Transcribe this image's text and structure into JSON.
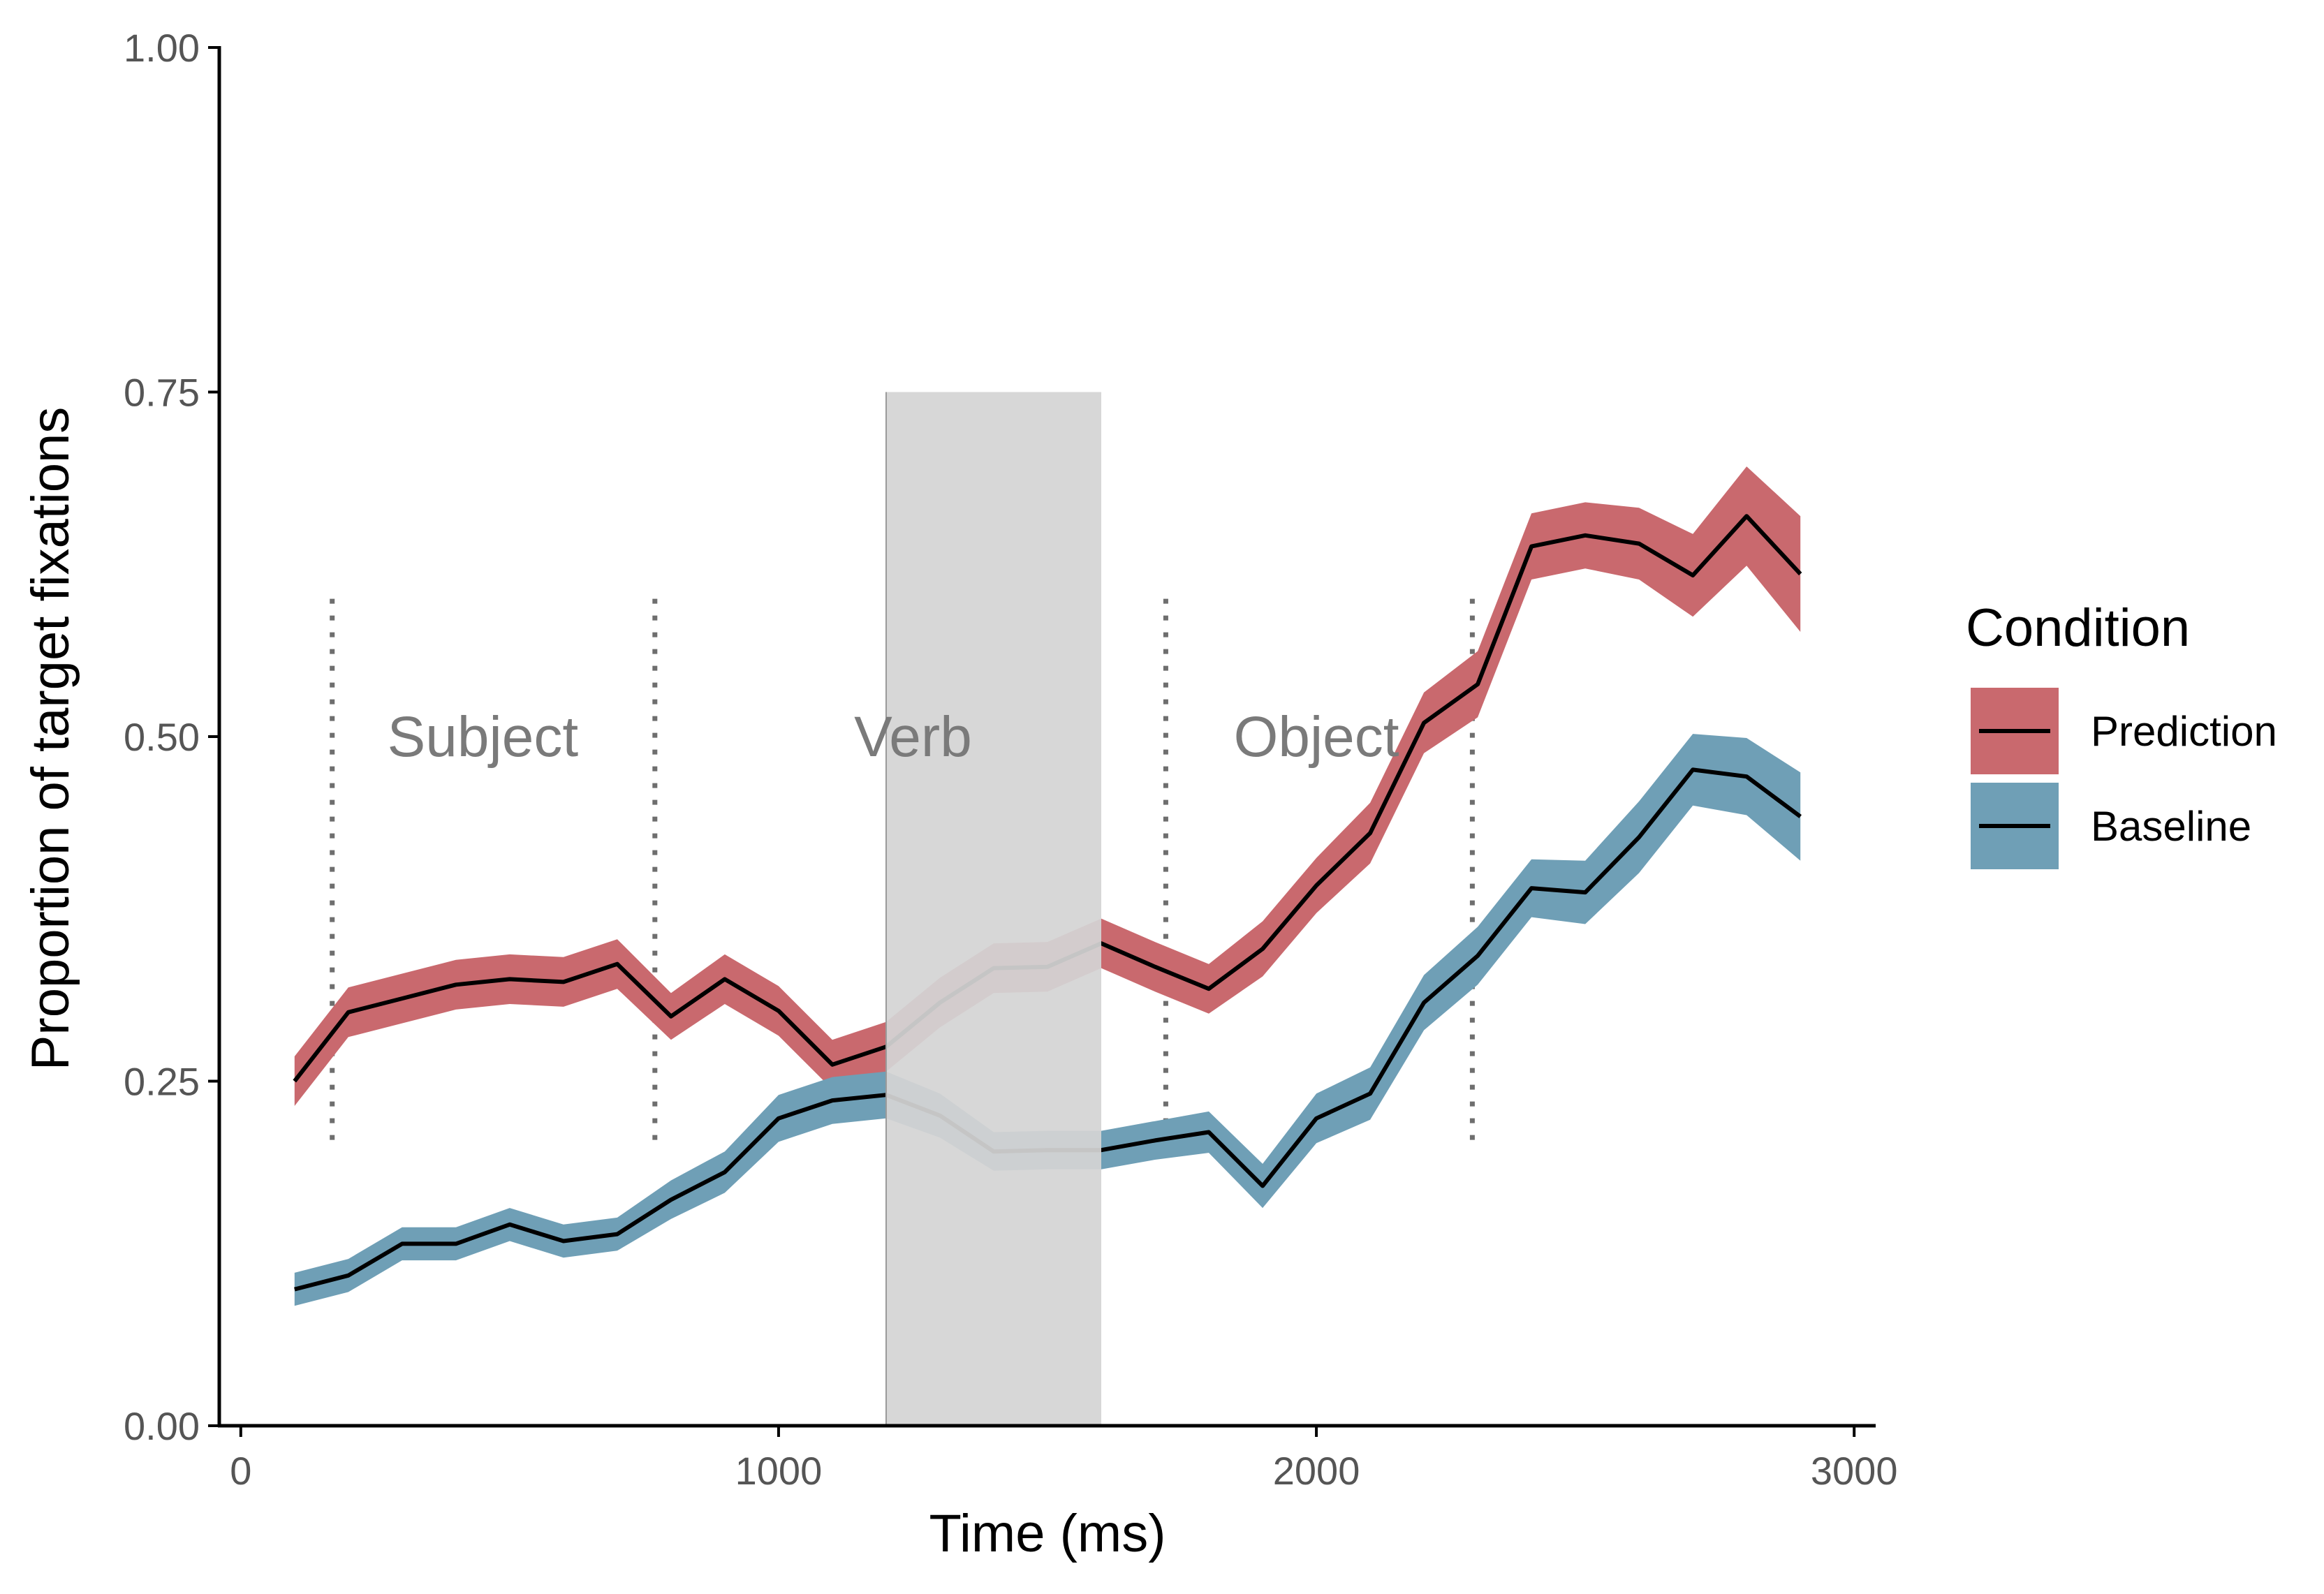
{
  "chart_data": {
    "type": "line",
    "xlabel": "Time (ms)",
    "ylabel": "Proportion of target fixations",
    "xlim": [
      -40,
      3040
    ],
    "ylim": [
      0,
      1
    ],
    "x_ticks": [
      0,
      1000,
      2000,
      3000
    ],
    "x_tick_labels": [
      "0",
      "1000",
      "2000",
      "3000"
    ],
    "y_ticks": [
      0,
      0.25,
      0.5,
      0.75,
      1
    ],
    "y_tick_labels": [
      "0.00",
      "0.25",
      "0.50",
      "0.75",
      "1.00"
    ],
    "grid": false,
    "x": [
      100,
      200,
      300,
      400,
      500,
      600,
      700,
      800,
      900,
      1000,
      1100,
      1200,
      1300,
      1400,
      1500,
      1600,
      1700,
      1800,
      1900,
      2000,
      2100,
      2200,
      2300,
      2400,
      2500,
      2600,
      2700,
      2800,
      2900
    ],
    "series": [
      {
        "name": "Prediction",
        "color": "#c9696e",
        "values": [
          0.25,
          0.3,
          0.31,
          0.32,
          0.324,
          0.322,
          0.335,
          0.297,
          0.324,
          0.301,
          0.262,
          0.275,
          0.307,
          0.332,
          0.333,
          0.35,
          0.333,
          0.317,
          0.346,
          0.392,
          0.43,
          0.51,
          0.538,
          0.638,
          0.646,
          0.64,
          0.617,
          0.66,
          0.618
        ],
        "lower": [
          0.232,
          0.282,
          0.292,
          0.302,
          0.306,
          0.304,
          0.317,
          0.28,
          0.306,
          0.283,
          0.244,
          0.257,
          0.289,
          0.314,
          0.315,
          0.332,
          0.315,
          0.299,
          0.326,
          0.372,
          0.408,
          0.488,
          0.514,
          0.614,
          0.622,
          0.614,
          0.587,
          0.624,
          0.576
        ],
        "upper": [
          0.268,
          0.318,
          0.328,
          0.338,
          0.342,
          0.34,
          0.353,
          0.314,
          0.342,
          0.319,
          0.28,
          0.293,
          0.325,
          0.35,
          0.351,
          0.368,
          0.351,
          0.335,
          0.366,
          0.412,
          0.452,
          0.532,
          0.562,
          0.662,
          0.67,
          0.666,
          0.647,
          0.696,
          0.66
        ]
      },
      {
        "name": "Baseline",
        "color": "#6f9fb6",
        "values": [
          0.099,
          0.109,
          0.132,
          0.132,
          0.146,
          0.134,
          0.139,
          0.164,
          0.184,
          0.223,
          0.236,
          0.24,
          0.225,
          0.199,
          0.2,
          0.2,
          0.207,
          0.213,
          0.174,
          0.223,
          0.241,
          0.307,
          0.341,
          0.39,
          0.387,
          0.427,
          0.476,
          0.471,
          0.442
        ],
        "lower": [
          0.087,
          0.097,
          0.12,
          0.12,
          0.134,
          0.122,
          0.127,
          0.15,
          0.169,
          0.206,
          0.219,
          0.223,
          0.209,
          0.185,
          0.186,
          0.186,
          0.193,
          0.198,
          0.158,
          0.205,
          0.222,
          0.287,
          0.32,
          0.369,
          0.364,
          0.401,
          0.45,
          0.443,
          0.41
        ],
        "upper": [
          0.111,
          0.121,
          0.144,
          0.144,
          0.158,
          0.146,
          0.151,
          0.178,
          0.199,
          0.24,
          0.253,
          0.257,
          0.241,
          0.213,
          0.214,
          0.214,
          0.221,
          0.228,
          0.19,
          0.241,
          0.26,
          0.327,
          0.362,
          0.411,
          0.41,
          0.453,
          0.502,
          0.499,
          0.474
        ]
      }
    ],
    "shaded_region": {
      "x_start": 1200,
      "x_end": 1600,
      "y_top": 0.75,
      "color": "#d4d4d4"
    },
    "vlines": [
      {
        "x": 170,
        "y_from": 0.2,
        "y_to": 0.6
      },
      {
        "x": 770,
        "y_from": 0.2,
        "y_to": 0.6
      },
      {
        "x": 1720,
        "y_from": 0.2,
        "y_to": 0.6
      },
      {
        "x": 2290,
        "y_from": 0.2,
        "y_to": 0.6
      }
    ],
    "annotations": [
      {
        "text": "Subject",
        "x": 450,
        "y": 0.5
      },
      {
        "text": "Verb",
        "x": 1250,
        "y": 0.5
      },
      {
        "text": "Object",
        "x": 2000,
        "y": 0.5
      }
    ],
    "legend": {
      "title": "Condition",
      "position": "right",
      "entries": [
        "Prediction",
        "Baseline"
      ]
    }
  }
}
